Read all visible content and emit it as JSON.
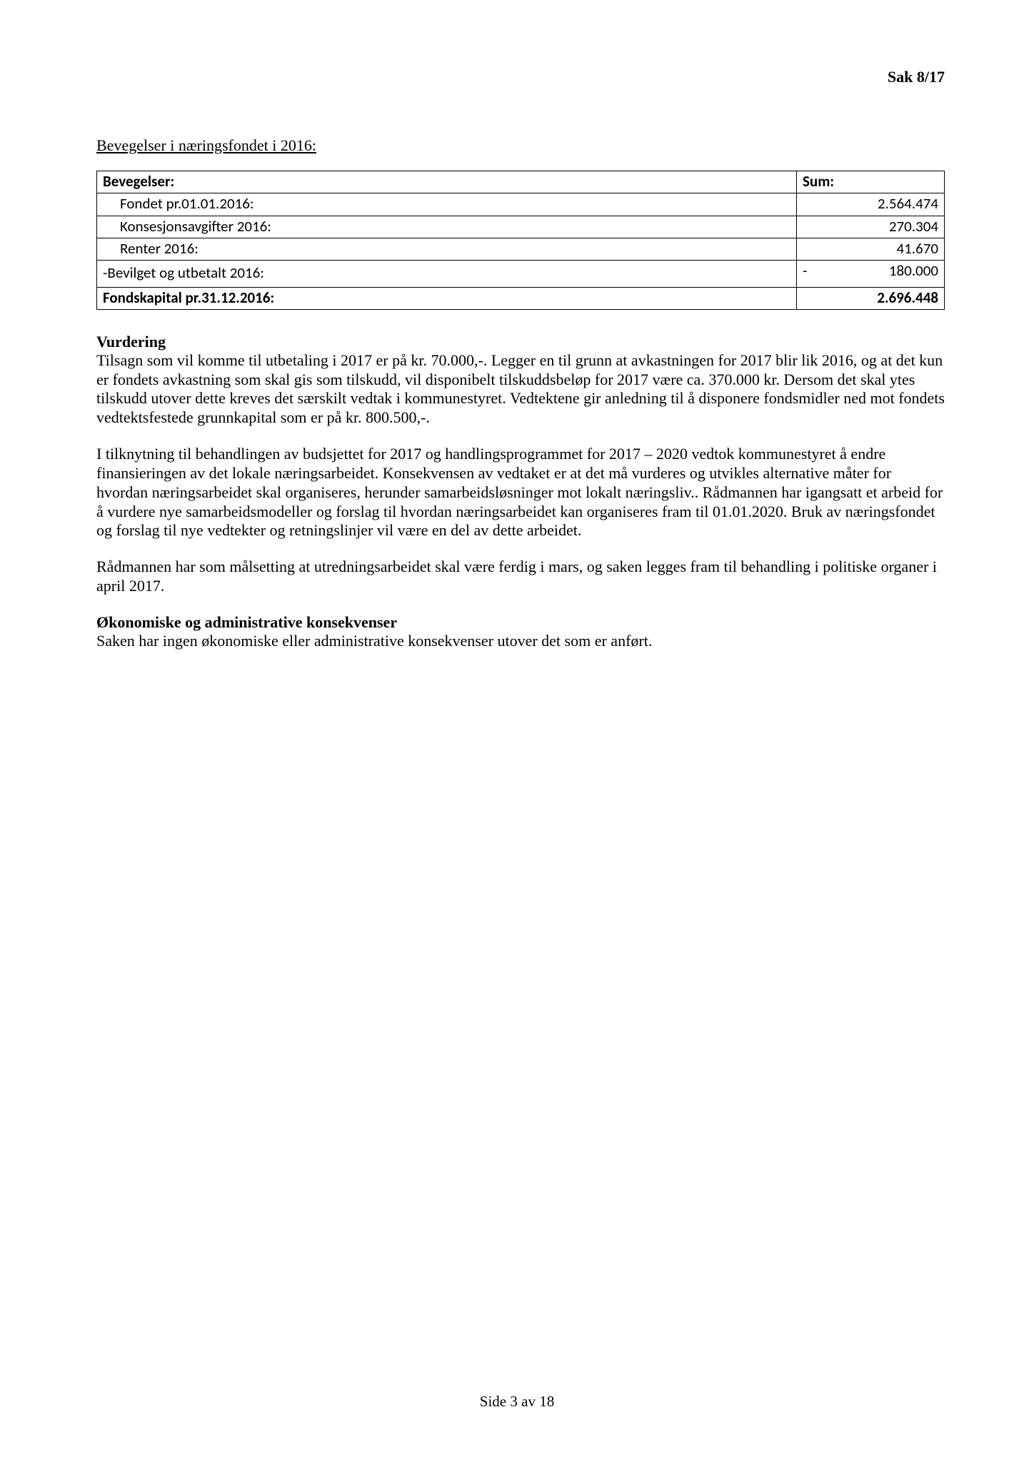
{
  "header": {
    "sak": "Sak 8/17"
  },
  "section_title": "Bevegelser i næringsfondet i 2016:",
  "table": {
    "header": {
      "label": "Bevegelser:",
      "sum": "Sum:"
    },
    "rows": [
      {
        "label": "Fondet pr.01.01.2016:",
        "sum": "2.564.474",
        "indent": true,
        "negative": false
      },
      {
        "label": "Konsesjonsavgifter 2016:",
        "sum": "270.304",
        "indent": true,
        "negative": false
      },
      {
        "label": "Renter 2016:",
        "sum": "41.670",
        "indent": true,
        "negative": false
      },
      {
        "label": "-Bevilget og utbetalt 2016:",
        "sum": "180.000",
        "indent": false,
        "negative": true
      }
    ],
    "footer": {
      "label": "Fondskapital pr.31.12.2016:",
      "sum": "2.696.448"
    }
  },
  "vurdering": {
    "heading": "Vurdering",
    "p1": "Tilsagn som vil komme til utbetaling i 2017 er på kr. 70.000,-. Legger en til grunn at avkastningen for 2017 blir lik 2016, og at det kun er fondets avkastning som skal gis som tilskudd, vil disponibelt tilskuddsbeløp for 2017 være ca. 370.000 kr. Dersom det skal ytes tilskudd utover dette kreves det særskilt vedtak i kommunestyret. Vedtektene gir anledning til å disponere fondsmidler ned mot fondets vedtektsfestede grunnkapital som er på kr. 800.500,-.",
    "p2": "I tilknytning til behandlingen av budsjettet for 2017 og handlingsprogrammet for 2017 – 2020 vedtok kommunestyret å endre finansieringen av det lokale næringsarbeidet. Konsekvensen av vedtaket er at det må vurderes og utvikles alternative måter for hvordan næringsarbeidet skal organiseres, herunder samarbeidsløsninger mot lokalt næringsliv.. Rådmannen har igangsatt et arbeid for å vurdere nye samarbeidsmodeller og forslag til hvordan næringsarbeidet kan organiseres fram til 01.01.2020. Bruk av næringsfondet og forslag til nye vedtekter og retningslinjer vil være en del av dette arbeidet.",
    "p3": "Rådmannen har som målsetting at utredningsarbeidet skal være ferdig i mars, og saken legges fram til behandling i politiske organer i april 2017."
  },
  "econ": {
    "heading": "Økonomiske og administrative konsekvenser",
    "p1": "Saken har ingen økonomiske eller administrative konsekvenser utover det som er anført."
  },
  "footer": {
    "text": "Side 3 av 18"
  }
}
